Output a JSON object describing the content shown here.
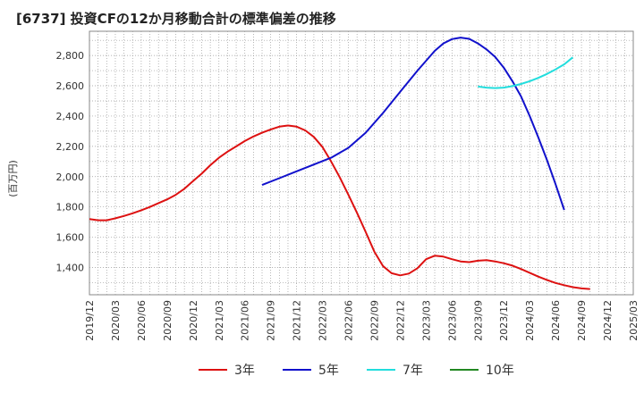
{
  "chart_data": {
    "type": "line",
    "title": "[6737]  投資CFの12か月移動合計の標準偏差の推移",
    "ylabel": "(百万円)",
    "xlabel": "",
    "ylim": [
      1220,
      2960
    ],
    "yticks": [
      1400,
      1600,
      1800,
      2000,
      2200,
      2400,
      2600,
      2800
    ],
    "xlim": [
      "2019-12",
      "2025-03"
    ],
    "xticks": [
      "2019/12",
      "2020/03",
      "2020/06",
      "2020/09",
      "2020/12",
      "2021/03",
      "2021/06",
      "2021/09",
      "2021/12",
      "2022/03",
      "2022/06",
      "2022/09",
      "2022/12",
      "2023/03",
      "2023/06",
      "2023/09",
      "2023/12",
      "2024/03",
      "2024/06",
      "2024/09",
      "2024/12",
      "2025/03"
    ],
    "grid": true,
    "legend_position": "bottom",
    "series": [
      {
        "name": "3年",
        "color": "#dd1111",
        "points": [
          [
            "2019-12",
            1720
          ],
          [
            "2020-01",
            1712
          ],
          [
            "2020-02",
            1712
          ],
          [
            "2020-03",
            1725
          ],
          [
            "2020-04",
            1740
          ],
          [
            "2020-05",
            1758
          ],
          [
            "2020-06",
            1778
          ],
          [
            "2020-07",
            1800
          ],
          [
            "2020-08",
            1825
          ],
          [
            "2020-09",
            1850
          ],
          [
            "2020-10",
            1880
          ],
          [
            "2020-11",
            1920
          ],
          [
            "2020-12",
            1970
          ],
          [
            "2021-01",
            2020
          ],
          [
            "2021-02",
            2075
          ],
          [
            "2021-03",
            2125
          ],
          [
            "2021-04",
            2165
          ],
          [
            "2021-05",
            2200
          ],
          [
            "2021-06",
            2235
          ],
          [
            "2021-07",
            2265
          ],
          [
            "2021-08",
            2290
          ],
          [
            "2021-09",
            2312
          ],
          [
            "2021-10",
            2330
          ],
          [
            "2021-11",
            2338
          ],
          [
            "2021-12",
            2330
          ],
          [
            "2022-01",
            2305
          ],
          [
            "2022-02",
            2262
          ],
          [
            "2022-03",
            2195
          ],
          [
            "2022-04",
            2100
          ],
          [
            "2022-05",
            1995
          ],
          [
            "2022-06",
            1880
          ],
          [
            "2022-07",
            1760
          ],
          [
            "2022-08",
            1635
          ],
          [
            "2022-09",
            1505
          ],
          [
            "2022-10",
            1410
          ],
          [
            "2022-11",
            1362
          ],
          [
            "2022-12",
            1348
          ],
          [
            "2023-01",
            1360
          ],
          [
            "2023-02",
            1395
          ],
          [
            "2023-03",
            1455
          ],
          [
            "2023-04",
            1478
          ],
          [
            "2023-05",
            1472
          ],
          [
            "2023-06",
            1455
          ],
          [
            "2023-07",
            1440
          ],
          [
            "2023-08",
            1435
          ],
          [
            "2023-09",
            1445
          ],
          [
            "2023-10",
            1448
          ],
          [
            "2023-11",
            1440
          ],
          [
            "2023-12",
            1428
          ],
          [
            "2024-01",
            1412
          ],
          [
            "2024-02",
            1390
          ],
          [
            "2024-03",
            1365
          ],
          [
            "2024-04",
            1340
          ],
          [
            "2024-05",
            1318
          ],
          [
            "2024-06",
            1298
          ],
          [
            "2024-07",
            1283
          ],
          [
            "2024-08",
            1270
          ],
          [
            "2024-09",
            1262
          ],
          [
            "2024-10",
            1258
          ]
        ]
      },
      {
        "name": "5年",
        "color": "#1111cc",
        "points": [
          [
            "2021-08",
            1945
          ],
          [
            "2021-10",
            1990
          ],
          [
            "2021-12",
            2035
          ],
          [
            "2022-02",
            2080
          ],
          [
            "2022-04",
            2125
          ],
          [
            "2022-06",
            2190
          ],
          [
            "2022-08",
            2290
          ],
          [
            "2022-10",
            2420
          ],
          [
            "2022-12",
            2560
          ],
          [
            "2023-02",
            2700
          ],
          [
            "2023-04",
            2830
          ],
          [
            "2023-05",
            2880
          ],
          [
            "2023-06",
            2908
          ],
          [
            "2023-07",
            2918
          ],
          [
            "2023-08",
            2910
          ],
          [
            "2023-09",
            2880
          ],
          [
            "2023-10",
            2840
          ],
          [
            "2023-11",
            2790
          ],
          [
            "2023-12",
            2720
          ],
          [
            "2024-01",
            2630
          ],
          [
            "2024-02",
            2530
          ],
          [
            "2024-03",
            2400
          ],
          [
            "2024-04",
            2260
          ],
          [
            "2024-05",
            2110
          ],
          [
            "2024-06",
            1950
          ],
          [
            "2024-07",
            1780
          ]
        ]
      },
      {
        "name": "7年",
        "color": "#22dddd",
        "points": [
          [
            "2023-09",
            2595
          ],
          [
            "2023-10",
            2588
          ],
          [
            "2023-11",
            2585
          ],
          [
            "2023-12",
            2588
          ],
          [
            "2024-01",
            2598
          ],
          [
            "2024-02",
            2612
          ],
          [
            "2024-03",
            2630
          ],
          [
            "2024-04",
            2652
          ],
          [
            "2024-05",
            2678
          ],
          [
            "2024-06",
            2708
          ],
          [
            "2024-07",
            2742
          ],
          [
            "2024-08",
            2788
          ]
        ]
      },
      {
        "name": "10年",
        "color": "#228822",
        "points": []
      }
    ]
  }
}
